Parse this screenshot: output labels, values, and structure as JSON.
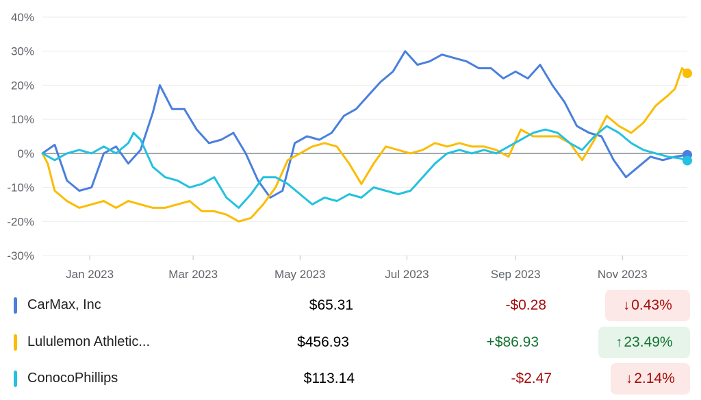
{
  "chart_data": {
    "type": "line",
    "ylabel": "",
    "xlabel": "",
    "y_ticks": [
      "40%",
      "30%",
      "20%",
      "10%",
      "0%",
      "-10%",
      "-20%",
      "-30%"
    ],
    "ylim": [
      -30,
      40
    ],
    "x_ticks": [
      "Jan 2023",
      "Mar 2023",
      "May 2023",
      "Jul 2023",
      "Sep 2023",
      "Nov 2023"
    ],
    "x_tick_dates": [
      "2023-01-01",
      "2023-03-01",
      "2023-05-01",
      "2023-07-01",
      "2023-09-01",
      "2023-11-01"
    ],
    "xlim": [
      "2022-12-05",
      "2023-12-08"
    ],
    "grid": true,
    "zero_line": true,
    "series": [
      {
        "name": "CarMax, Inc",
        "color": "#4a7fde",
        "points": [
          [
            "2022-12-05",
            0
          ],
          [
            "2022-12-12",
            2.5
          ],
          [
            "2022-12-19",
            -8
          ],
          [
            "2022-12-26",
            -11
          ],
          [
            "2023-01-02",
            -10
          ],
          [
            "2023-01-09",
            0
          ],
          [
            "2023-01-16",
            2
          ],
          [
            "2023-01-23",
            -3
          ],
          [
            "2023-01-30",
            1
          ],
          [
            "2023-02-06",
            12
          ],
          [
            "2023-02-10",
            20
          ],
          [
            "2023-02-17",
            13
          ],
          [
            "2023-02-24",
            13
          ],
          [
            "2023-03-03",
            7
          ],
          [
            "2023-03-10",
            3
          ],
          [
            "2023-03-17",
            4
          ],
          [
            "2023-03-24",
            6
          ],
          [
            "2023-03-31",
            0
          ],
          [
            "2023-04-07",
            -8
          ],
          [
            "2023-04-14",
            -13
          ],
          [
            "2023-04-21",
            -11
          ],
          [
            "2023-04-28",
            3
          ],
          [
            "2023-05-05",
            5
          ],
          [
            "2023-05-12",
            4
          ],
          [
            "2023-05-19",
            6
          ],
          [
            "2023-05-26",
            11
          ],
          [
            "2023-06-02",
            13
          ],
          [
            "2023-06-09",
            17
          ],
          [
            "2023-06-16",
            21
          ],
          [
            "2023-06-23",
            24
          ],
          [
            "2023-06-30",
            30
          ],
          [
            "2023-07-07",
            26
          ],
          [
            "2023-07-14",
            27
          ],
          [
            "2023-07-21",
            29
          ],
          [
            "2023-07-28",
            28
          ],
          [
            "2023-08-04",
            27
          ],
          [
            "2023-08-11",
            25
          ],
          [
            "2023-08-18",
            25
          ],
          [
            "2023-08-25",
            22
          ],
          [
            "2023-09-01",
            24
          ],
          [
            "2023-09-08",
            22
          ],
          [
            "2023-09-15",
            26
          ],
          [
            "2023-09-22",
            20
          ],
          [
            "2023-09-29",
            15
          ],
          [
            "2023-10-06",
            8
          ],
          [
            "2023-10-13",
            6
          ],
          [
            "2023-10-20",
            5
          ],
          [
            "2023-10-27",
            -2
          ],
          [
            "2023-11-03",
            -7
          ],
          [
            "2023-11-10",
            -4
          ],
          [
            "2023-11-17",
            -1
          ],
          [
            "2023-11-24",
            -2
          ],
          [
            "2023-12-01",
            -1
          ],
          [
            "2023-12-08",
            -0.43
          ]
        ]
      },
      {
        "name": "Lululemon Athletic...",
        "color": "#fbbc04",
        "points": [
          [
            "2022-12-05",
            0
          ],
          [
            "2022-12-08",
            -3
          ],
          [
            "2022-12-12",
            -11
          ],
          [
            "2022-12-19",
            -14
          ],
          [
            "2022-12-26",
            -16
          ],
          [
            "2023-01-02",
            -15
          ],
          [
            "2023-01-09",
            -14
          ],
          [
            "2023-01-16",
            -16
          ],
          [
            "2023-01-23",
            -14
          ],
          [
            "2023-01-30",
            -15
          ],
          [
            "2023-02-06",
            -16
          ],
          [
            "2023-02-13",
            -16
          ],
          [
            "2023-02-20",
            -15
          ],
          [
            "2023-02-27",
            -14
          ],
          [
            "2023-03-06",
            -17
          ],
          [
            "2023-03-13",
            -17
          ],
          [
            "2023-03-20",
            -18
          ],
          [
            "2023-03-27",
            -20
          ],
          [
            "2023-04-03",
            -19
          ],
          [
            "2023-04-10",
            -15
          ],
          [
            "2023-04-17",
            -10
          ],
          [
            "2023-04-24",
            -2
          ],
          [
            "2023-05-01",
            0
          ],
          [
            "2023-05-08",
            2
          ],
          [
            "2023-05-15",
            3
          ],
          [
            "2023-05-22",
            2
          ],
          [
            "2023-05-29",
            -3
          ],
          [
            "2023-06-05",
            -9
          ],
          [
            "2023-06-12",
            -3
          ],
          [
            "2023-06-19",
            2
          ],
          [
            "2023-06-26",
            1
          ],
          [
            "2023-07-03",
            0
          ],
          [
            "2023-07-10",
            1
          ],
          [
            "2023-07-17",
            3
          ],
          [
            "2023-07-24",
            2
          ],
          [
            "2023-07-31",
            3
          ],
          [
            "2023-08-07",
            2
          ],
          [
            "2023-08-14",
            2
          ],
          [
            "2023-08-21",
            1
          ],
          [
            "2023-08-28",
            -1
          ],
          [
            "2023-09-04",
            7
          ],
          [
            "2023-09-11",
            5
          ],
          [
            "2023-09-18",
            5
          ],
          [
            "2023-09-25",
            5
          ],
          [
            "2023-10-02",
            3
          ],
          [
            "2023-10-09",
            -2
          ],
          [
            "2023-10-16",
            4
          ],
          [
            "2023-10-23",
            11
          ],
          [
            "2023-10-30",
            8
          ],
          [
            "2023-11-06",
            6
          ],
          [
            "2023-11-13",
            9
          ],
          [
            "2023-11-20",
            14
          ],
          [
            "2023-11-27",
            17
          ],
          [
            "2023-12-01",
            19
          ],
          [
            "2023-12-05",
            25
          ],
          [
            "2023-12-08",
            23.49
          ]
        ]
      },
      {
        "name": "ConocoPhillips",
        "color": "#24c1e0",
        "points": [
          [
            "2022-12-05",
            0
          ],
          [
            "2022-12-12",
            -2
          ],
          [
            "2022-12-19",
            0
          ],
          [
            "2022-12-26",
            1
          ],
          [
            "2023-01-02",
            0
          ],
          [
            "2023-01-09",
            2
          ],
          [
            "2023-01-16",
            0
          ],
          [
            "2023-01-23",
            3
          ],
          [
            "2023-01-26",
            6
          ],
          [
            "2023-01-30",
            4
          ],
          [
            "2023-02-06",
            -4
          ],
          [
            "2023-02-13",
            -7
          ],
          [
            "2023-02-20",
            -8
          ],
          [
            "2023-02-27",
            -10
          ],
          [
            "2023-03-06",
            -9
          ],
          [
            "2023-03-13",
            -7
          ],
          [
            "2023-03-20",
            -13
          ],
          [
            "2023-03-27",
            -16
          ],
          [
            "2023-04-03",
            -12
          ],
          [
            "2023-04-10",
            -7
          ],
          [
            "2023-04-17",
            -7
          ],
          [
            "2023-04-24",
            -9
          ],
          [
            "2023-05-01",
            -12
          ],
          [
            "2023-05-08",
            -15
          ],
          [
            "2023-05-15",
            -13
          ],
          [
            "2023-05-22",
            -14
          ],
          [
            "2023-05-29",
            -12
          ],
          [
            "2023-06-05",
            -13
          ],
          [
            "2023-06-12",
            -10
          ],
          [
            "2023-06-19",
            -11
          ],
          [
            "2023-06-26",
            -12
          ],
          [
            "2023-07-03",
            -11
          ],
          [
            "2023-07-10",
            -7
          ],
          [
            "2023-07-17",
            -3
          ],
          [
            "2023-07-24",
            0
          ],
          [
            "2023-07-31",
            1
          ],
          [
            "2023-08-07",
            0
          ],
          [
            "2023-08-14",
            1
          ],
          [
            "2023-08-21",
            0
          ],
          [
            "2023-08-28",
            2
          ],
          [
            "2023-09-04",
            4
          ],
          [
            "2023-09-11",
            6
          ],
          [
            "2023-09-18",
            7
          ],
          [
            "2023-09-25",
            6
          ],
          [
            "2023-10-02",
            3
          ],
          [
            "2023-10-09",
            1
          ],
          [
            "2023-10-16",
            5
          ],
          [
            "2023-10-23",
            8
          ],
          [
            "2023-10-30",
            6
          ],
          [
            "2023-11-06",
            3
          ],
          [
            "2023-11-13",
            1
          ],
          [
            "2023-11-20",
            0
          ],
          [
            "2023-11-27",
            -1
          ],
          [
            "2023-12-04",
            -1.5
          ],
          [
            "2023-12-08",
            -2.14
          ]
        ]
      }
    ]
  },
  "stocks": [
    {
      "name": "CarMax, Inc",
      "color": "#4a7fde",
      "price": "$65.31",
      "change": "-$0.28",
      "pct": "0.43%",
      "arrow": "↓",
      "direction": "down"
    },
    {
      "name": "Lululemon Athletic...",
      "color": "#fbbc04",
      "price": "$456.93",
      "change": "+$86.93",
      "pct": "23.49%",
      "arrow": "↑",
      "direction": "up"
    },
    {
      "name": "ConocoPhillips",
      "color": "#24c1e0",
      "price": "$113.14",
      "change": "-$2.47",
      "pct": "2.14%",
      "arrow": "↓",
      "direction": "down"
    }
  ],
  "colors": {
    "down_text": "#a50e0e",
    "down_bg": "#fce8e6",
    "up_text": "#137333",
    "up_bg": "#e6f4ea",
    "grid": "#ececec",
    "zero_line": "#80868b"
  }
}
